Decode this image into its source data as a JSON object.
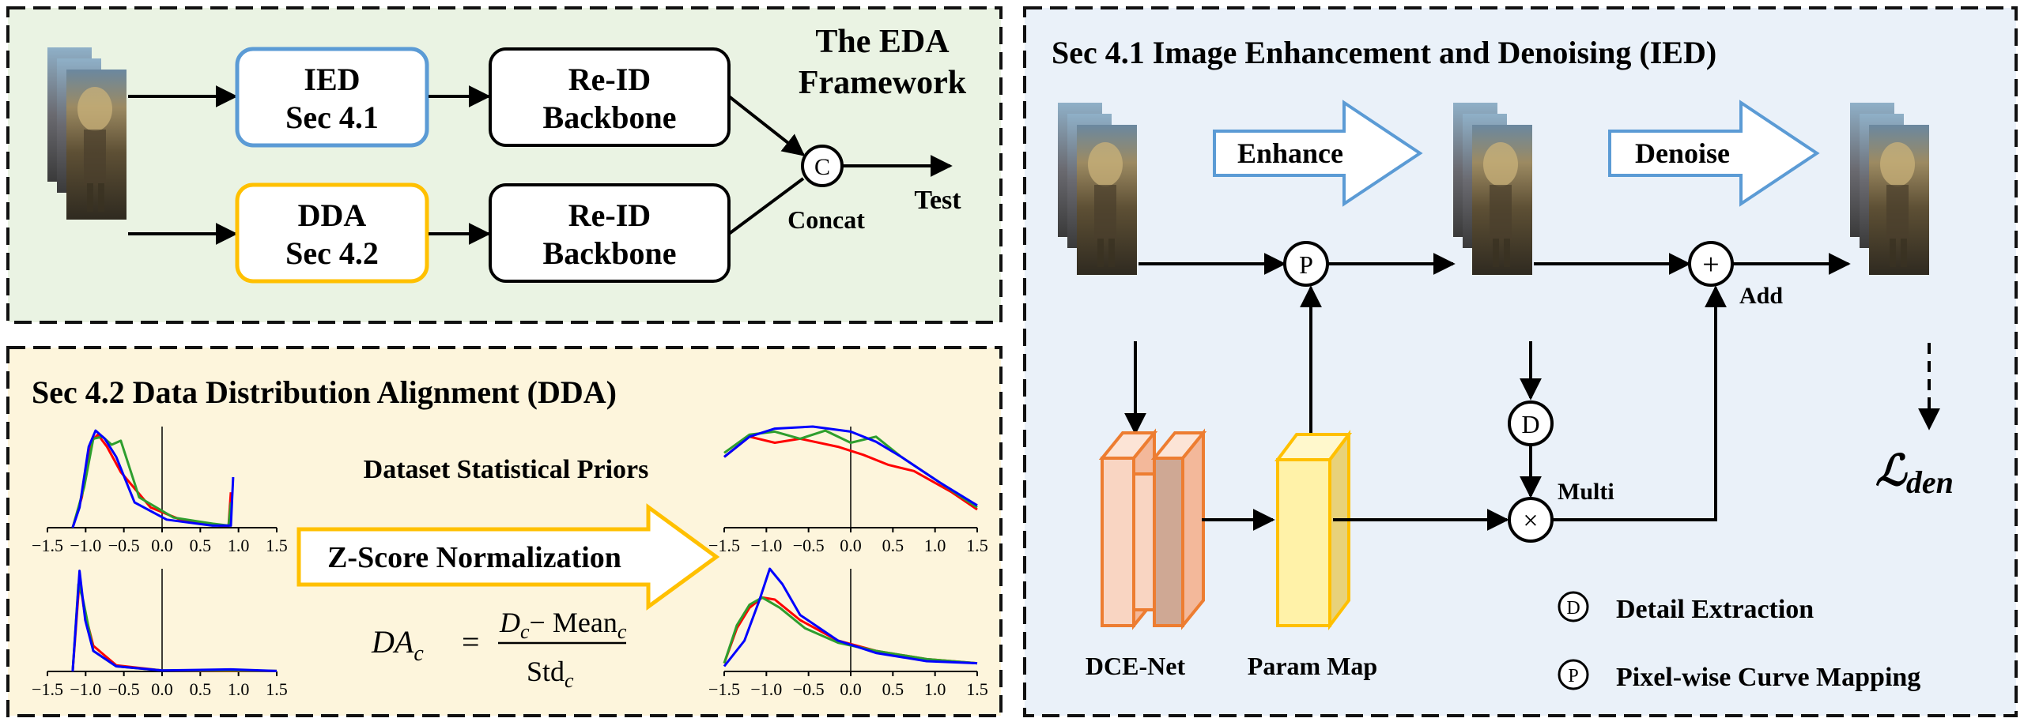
{
  "framework": {
    "title_line1": "The EDA",
    "title_line2": "Framework",
    "ied_line1": "IED",
    "ied_line2": "Sec 4.1",
    "dda_line1": "DDA",
    "dda_line2": "Sec 4.2",
    "backbone_top_line1": "Re-ID",
    "backbone_top_line2": "Backbone",
    "backbone_bottom_line1": "Re-ID",
    "backbone_bottom_line2": "Backbone",
    "concat_symbol": "C",
    "concat_label": "Concat",
    "test_label": "Test"
  },
  "ied": {
    "title": "Sec 4.1 Image Enhancement and Denoising (IED)",
    "enhance_label": "Enhance",
    "denoise_label": "Denoise",
    "p_symbol": "P",
    "d_symbol": "D",
    "multi_label": "Multi",
    "add_label": "Add",
    "dce_net_label": "DCE-Net",
    "param_map_label": "Param Map",
    "loss_main": "ℒ",
    "loss_sub": "den",
    "legend": [
      {
        "symbol": "D",
        "text": "Detail Extraction"
      },
      {
        "symbol": "P",
        "text": "Pixel-wise Curve Mapping"
      }
    ]
  },
  "dda": {
    "title": "Sec 4.2 Data Distribution Alignment (DDA)",
    "priors_label": "Dataset Statistical Priors",
    "zscore_label": "Z-Score Normalization",
    "formula": {
      "lhs": "DA",
      "lhs_sub": "c",
      "eq": "=",
      "num_a": "D",
      "num_a_sub": "c",
      "num_op": "− Mean",
      "num_b_sub": "c",
      "den": "Std",
      "den_sub": "c"
    },
    "tick_labels": [
      "−1.5",
      "−1.0",
      "−0.5",
      "0.0",
      "0.5",
      "1.0",
      "1.5"
    ]
  },
  "colors": {
    "framework_bg": "#eaf3e3",
    "ied_bg": "#eaf1f9",
    "dda_bg": "#fdf5dc",
    "ied_box_border": "#5b9bd5",
    "dda_box_border": "#ffc000",
    "enhance_arrow": "#5b9bd5",
    "zscore_arrow": "#ffc000",
    "dce_fill": "#f9d5c2",
    "dce_border": "#ed7d31",
    "param_fill": "#fff2a8",
    "param_border": "#ffc000",
    "curve_red": "#ff0000",
    "curve_green": "#2e9e2e",
    "curve_blue": "#0000ff"
  }
}
